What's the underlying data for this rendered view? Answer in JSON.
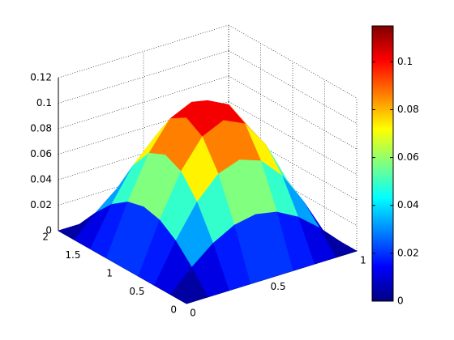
{
  "chart_data": {
    "type": "surface",
    "x": [
      0,
      0.125,
      0.25,
      0.375,
      0.5,
      0.625,
      0.75,
      0.875,
      1
    ],
    "y": [
      0,
      0.25,
      0.5,
      0.75,
      1,
      1.25,
      1.5,
      1.75,
      2
    ],
    "z": [
      [
        0,
        0,
        0,
        0,
        0,
        0,
        0,
        0,
        0
      ],
      [
        0,
        0.0161,
        0.0298,
        0.0389,
        0.0421,
        0.0389,
        0.0298,
        0.0161,
        0
      ],
      [
        0,
        0.0298,
        0.055,
        0.0719,
        0.0778,
        0.0719,
        0.055,
        0.0298,
        0
      ],
      [
        0,
        0.0389,
        0.0719,
        0.0939,
        0.1016,
        0.0939,
        0.0719,
        0.0389,
        0
      ],
      [
        0,
        0.0421,
        0.0778,
        0.1016,
        0.11,
        0.1016,
        0.0778,
        0.0421,
        0
      ],
      [
        0,
        0.0389,
        0.0719,
        0.0939,
        0.1016,
        0.0939,
        0.0719,
        0.0389,
        0
      ],
      [
        0,
        0.0298,
        0.055,
        0.0719,
        0.0778,
        0.0719,
        0.055,
        0.0298,
        0
      ],
      [
        0,
        0.0161,
        0.0298,
        0.0389,
        0.0421,
        0.0389,
        0.0298,
        0.0161,
        0
      ],
      [
        0,
        0,
        0,
        0,
        0,
        0,
        0,
        0,
        0
      ]
    ],
    "xlim": [
      0,
      1
    ],
    "xticks": [
      0,
      0.5,
      1
    ],
    "ylim": [
      0,
      2
    ],
    "yticks": [
      0,
      0.5,
      1,
      1.5,
      2
    ],
    "zlim": [
      0,
      0.12
    ],
    "zticks": [
      0,
      0.02,
      0.04,
      0.06,
      0.08,
      0.1,
      0.12
    ],
    "colormap": "jet",
    "clim": [
      0,
      0.115
    ],
    "colorbar_ticks": [
      0,
      0.02,
      0.04,
      0.06,
      0.08,
      0.1
    ],
    "grid": true
  }
}
